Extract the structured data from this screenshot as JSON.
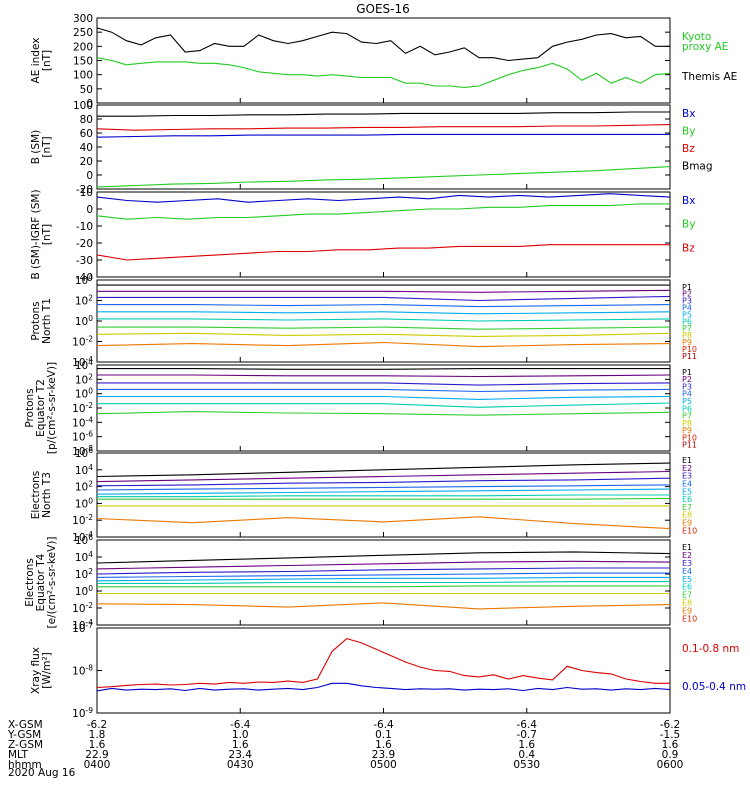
{
  "title": "GOES-16",
  "colors": {
    "black": "#000000",
    "blue": "#0000cc",
    "green": "#22cc22",
    "red": "#dd0000",
    "protons": [
      "#000000",
      "#6a0080",
      "#2a1acc",
      "#1a66ee",
      "#00aaee",
      "#00ccb0",
      "#33cc33",
      "#cccc00",
      "#ee7700",
      "#dd2200",
      "#aa0000"
    ],
    "electrons": [
      "#000000",
      "#6a0080",
      "#2a1acc",
      "#1a66ee",
      "#00aaee",
      "#00ccb0",
      "#33cc33",
      "#cccc00",
      "#ee7700",
      "#dd2200",
      "#aa0000"
    ]
  },
  "chart_data": [
    {
      "id": "ae",
      "type": "line",
      "ylabel": [
        "AE index",
        "[nT]"
      ],
      "yticks": [
        "300",
        "250",
        "200",
        "150",
        "100",
        "50",
        "0"
      ],
      "ylim": [
        0,
        300
      ],
      "legend": [
        {
          "text": "Kyoto",
          "color": "#22cc22"
        },
        {
          "text": "proxy AE",
          "color": "#22cc22"
        },
        {
          "text": "Themis AE",
          "color": "#000000"
        }
      ],
      "series": [
        {
          "name": "Themis AE",
          "color": "#000000",
          "values": [
            265,
            250,
            220,
            205,
            230,
            240,
            180,
            185,
            210,
            200,
            200,
            240,
            220,
            210,
            220,
            235,
            250,
            245,
            215,
            210,
            220,
            175,
            200,
            170,
            180,
            195,
            160,
            160,
            150,
            155,
            160,
            200,
            215,
            225,
            240,
            245,
            230,
            235,
            200,
            200
          ]
        },
        {
          "name": "Kyoto proxy AE",
          "color": "#22cc22",
          "values": [
            160,
            150,
            135,
            140,
            145,
            145,
            145,
            140,
            140,
            135,
            125,
            110,
            105,
            100,
            100,
            95,
            100,
            95,
            90,
            90,
            90,
            70,
            70,
            60,
            60,
            55,
            60,
            80,
            100,
            115,
            125,
            140,
            120,
            80,
            105,
            70,
            90,
            70,
            100,
            105
          ]
        }
      ]
    },
    {
      "id": "bsm",
      "type": "line",
      "ylabel": [
        "B (SM)",
        "[nT]"
      ],
      "yticks": [
        "100",
        "80",
        "60",
        "40",
        "20",
        "0",
        "-20"
      ],
      "ylim": [
        -20,
        100
      ],
      "legend": [
        {
          "text": "Bx",
          "color": "#0000cc"
        },
        {
          "text": "By",
          "color": "#22cc22"
        },
        {
          "text": "Bz",
          "color": "#dd0000"
        },
        {
          "text": "Bmag",
          "color": "#000000"
        }
      ],
      "series": [
        {
          "name": "Bmag",
          "color": "#000000",
          "values": [
            84,
            84,
            85,
            85,
            86,
            86,
            87,
            87,
            88,
            88,
            88,
            88,
            89,
            89,
            90,
            90
          ]
        },
        {
          "name": "Bz",
          "color": "#dd0000",
          "values": [
            66,
            64,
            65,
            66,
            66,
            67,
            67,
            68,
            68,
            69,
            69,
            69,
            70,
            70,
            71,
            72
          ]
        },
        {
          "name": "Bx",
          "color": "#0000cc",
          "values": [
            54,
            55,
            56,
            56,
            57,
            57,
            57,
            57,
            58,
            58,
            58,
            58,
            58,
            58,
            58,
            58
          ]
        },
        {
          "name": "By",
          "color": "#22cc22",
          "values": [
            -17,
            -15,
            -13,
            -12,
            -10,
            -9,
            -7,
            -6,
            -4,
            -2,
            0,
            2,
            4,
            6,
            9,
            12
          ]
        }
      ]
    },
    {
      "id": "bdiff",
      "type": "line",
      "ylabel": [
        "B (SM)-IGRF (SM)",
        "[nT]"
      ],
      "yticks": [
        "10",
        "0",
        "-10",
        "-20",
        "-30",
        "-40"
      ],
      "ylim": [
        -40,
        10
      ],
      "legend": [
        {
          "text": "Bx",
          "color": "#0000cc"
        },
        {
          "text": "By",
          "color": "#22cc22"
        },
        {
          "text": "Bz",
          "color": "#dd0000"
        }
      ],
      "series": [
        {
          "name": "Bx",
          "color": "#0000cc",
          "values": [
            7,
            5,
            4,
            5,
            6,
            4,
            5,
            6,
            5,
            6,
            7,
            6,
            8,
            7,
            8,
            7,
            8,
            9,
            8,
            7
          ]
        },
        {
          "name": "By",
          "color": "#22cc22",
          "values": [
            -4,
            -6,
            -5,
            -6,
            -5,
            -5,
            -4,
            -3,
            -3,
            -2,
            -1,
            0,
            0,
            1,
            1,
            2,
            2,
            2,
            3,
            3
          ]
        },
        {
          "name": "Bz",
          "color": "#dd0000",
          "values": [
            -27,
            -30,
            -29,
            -28,
            -27,
            -26,
            -25,
            -25,
            -24,
            -24,
            -23,
            -23,
            -22,
            -22,
            -22,
            -21,
            -21,
            -21,
            -21,
            -21
          ]
        }
      ]
    },
    {
      "id": "pn",
      "type": "line",
      "ylabel": [
        "Protons",
        "North T1"
      ],
      "yticks": [
        "10^4",
        "10^2",
        "10^0",
        "10^-2",
        "10^-4"
      ],
      "logrange": [
        -4,
        4
      ],
      "legend": [
        "P1",
        "P2",
        "P3",
        "P4",
        "P5",
        "P6",
        "P7",
        "P8",
        "P9",
        "P10",
        "P11"
      ],
      "series": [
        {
          "name": "P1",
          "values": [
            3.5,
            3.5,
            3.5,
            3.5,
            3.5,
            3.5,
            3.5
          ]
        },
        {
          "name": "P2",
          "values": [
            2.9,
            2.9,
            2.9,
            2.9,
            2.8,
            2.9,
            3.0
          ]
        },
        {
          "name": "P3",
          "values": [
            2.3,
            2.3,
            2.3,
            2.3,
            2.0,
            2.2,
            2.4
          ]
        },
        {
          "name": "P4",
          "values": [
            1.6,
            1.6,
            1.5,
            1.6,
            1.4,
            1.5,
            1.6
          ]
        },
        {
          "name": "P5",
          "values": [
            0.9,
            0.9,
            0.8,
            0.9,
            0.7,
            0.8,
            0.9
          ]
        },
        {
          "name": "P6",
          "values": [
            0.2,
            0.2,
            0.1,
            0.2,
            0.0,
            0.1,
            0.2
          ]
        },
        {
          "name": "P7",
          "values": [
            -0.6,
            -0.6,
            -0.7,
            -0.6,
            -0.8,
            -0.7,
            -0.6
          ]
        },
        {
          "name": "P8",
          "values": [
            -1.3,
            -1.2,
            -1.4,
            -1.3,
            -1.5,
            -1.4,
            -1.2
          ]
        },
        {
          "name": "P9",
          "values": [
            -2.4,
            -2.2,
            -2.4,
            -2.1,
            -2.5,
            -2.3,
            -2.2
          ]
        }
      ]
    },
    {
      "id": "pe",
      "type": "line",
      "ylabel": [
        "Protons",
        "Equator T2",
        "[p/(cm²-s-sr-keV)]"
      ],
      "yticks": [
        "10^4",
        "10^2",
        "10^0",
        "10^-2",
        "10^-4",
        "10^-6",
        "10^-8"
      ],
      "logrange": [
        -8,
        4
      ],
      "legend": [
        "P1",
        "P2",
        "P3",
        "P4",
        "P5",
        "P6",
        "P7",
        "P8",
        "P9",
        "P10",
        "P11"
      ],
      "series": [
        {
          "name": "P1",
          "values": [
            3.5,
            3.5,
            3.4,
            3.4,
            3.5,
            3.5,
            3.5
          ]
        },
        {
          "name": "P2",
          "values": [
            2.6,
            2.6,
            2.5,
            2.5,
            2.4,
            2.5,
            2.6
          ]
        },
        {
          "name": "P3",
          "values": [
            1.5,
            1.5,
            1.5,
            1.5,
            1.2,
            1.4,
            1.5
          ]
        },
        {
          "name": "P4",
          "values": [
            0.6,
            0.6,
            0.6,
            0.6,
            0.3,
            0.5,
            0.6
          ]
        },
        {
          "name": "P5",
          "values": [
            -0.4,
            -0.4,
            -0.4,
            -0.4,
            -0.8,
            -0.5,
            -0.4
          ]
        },
        {
          "name": "P6",
          "values": [
            -1.4,
            -1.4,
            -1.4,
            -1.4,
            -1.9,
            -1.6,
            -1.3
          ]
        },
        {
          "name": "P7",
          "values": [
            -2.8,
            -2.5,
            -2.7,
            -2.8,
            -3.0,
            -2.8,
            -2.6
          ]
        }
      ]
    },
    {
      "id": "en",
      "type": "line",
      "ylabel": [
        "Electrons",
        "North T3"
      ],
      "yticks": [
        "10^6",
        "10^4",
        "10^2",
        "10^0",
        "10^-2",
        "10^-4"
      ],
      "logrange": [
        -4,
        6
      ],
      "legend": [
        "E1",
        "E2",
        "E3",
        "E4",
        "E5",
        "E6",
        "E7",
        "E8",
        "E9",
        "E10"
      ],
      "series": [
        {
          "name": "E1",
          "values": [
            3.2,
            3.4,
            3.7,
            4.0,
            4.3,
            4.6,
            4.8
          ]
        },
        {
          "name": "E2",
          "values": [
            2.6,
            2.8,
            3.0,
            3.2,
            3.4,
            3.6,
            3.8
          ]
        },
        {
          "name": "E3",
          "values": [
            2.1,
            2.2,
            2.4,
            2.5,
            2.7,
            2.8,
            3.0
          ]
        },
        {
          "name": "E4",
          "values": [
            1.6,
            1.7,
            1.8,
            1.9,
            2.0,
            2.1,
            2.2
          ]
        },
        {
          "name": "E5",
          "values": [
            1.1,
            1.2,
            1.3,
            1.4,
            1.5,
            1.6,
            1.7
          ]
        },
        {
          "name": "E6",
          "values": [
            0.8,
            0.8,
            0.9,
            0.9,
            0.9,
            1.0,
            1.0
          ]
        },
        {
          "name": "E7",
          "values": [
            0.5,
            0.5,
            0.5,
            0.5,
            0.5,
            0.5,
            0.6
          ]
        },
        {
          "name": "E8",
          "values": [
            -0.3,
            -0.3,
            -0.3,
            -0.3,
            -0.3,
            -0.3,
            -0.3
          ]
        },
        {
          "name": "E9",
          "values": [
            -1.8,
            -2.3,
            -1.7,
            -2.2,
            -1.6,
            -2.4,
            -3.0
          ]
        }
      ]
    },
    {
      "id": "ee",
      "type": "line",
      "ylabel": [
        "Electrons",
        "Equator T4",
        "[e/(cm²-s-sr-keV)]"
      ],
      "yticks": [
        "10^6",
        "10^4",
        "10^2",
        "10^0",
        "10^-2",
        "10^-4"
      ],
      "logrange": [
        -4,
        6
      ],
      "legend": [
        "E1",
        "E2",
        "E3",
        "E4",
        "E5",
        "E6",
        "E7",
        "E8",
        "E9",
        "E10"
      ],
      "series": [
        {
          "name": "E1",
          "values": [
            3.3,
            3.6,
            3.9,
            4.2,
            4.5,
            4.6,
            4.4
          ]
        },
        {
          "name": "E2",
          "values": [
            2.6,
            2.8,
            3.0,
            3.2,
            3.4,
            3.5,
            3.4
          ]
        },
        {
          "name": "E3",
          "values": [
            2.0,
            2.2,
            2.3,
            2.5,
            2.6,
            2.7,
            2.7
          ]
        },
        {
          "name": "E4",
          "values": [
            1.6,
            1.7,
            1.8,
            1.9,
            2.0,
            2.1,
            2.1
          ]
        },
        {
          "name": "E5",
          "values": [
            1.2,
            1.3,
            1.4,
            1.5,
            1.5,
            1.6,
            1.6
          ]
        },
        {
          "name": "E6",
          "values": [
            0.9,
            0.9,
            1.0,
            1.0,
            1.0,
            1.1,
            1.1
          ]
        },
        {
          "name": "E7",
          "values": [
            0.5,
            0.5,
            0.5,
            0.5,
            0.6,
            0.6,
            0.6
          ]
        },
        {
          "name": "E8",
          "values": [
            -0.3,
            -0.3,
            -0.3,
            -0.3,
            -0.3,
            -0.3,
            -0.3
          ]
        },
        {
          "name": "E9",
          "values": [
            -1.5,
            -1.6,
            -1.9,
            -1.4,
            -2.1,
            -1.8,
            -1.6
          ]
        }
      ]
    },
    {
      "id": "xray",
      "type": "line",
      "ylabel": [
        "Xray flux",
        "[W/m²]"
      ],
      "yticks": [
        "10^-7",
        "10^-8",
        "10^-9"
      ],
      "logrange": [
        -9,
        -7
      ],
      "legend": [
        {
          "text": "0.1-0.8 nm",
          "color": "#dd0000"
        },
        {
          "text": "0.05-0.4 nm",
          "color": "#0000cc"
        }
      ],
      "series": [
        {
          "name": "0.1-0.8 nm",
          "color": "#dd0000",
          "values": [
            -8.4,
            -8.38,
            -8.35,
            -8.33,
            -8.32,
            -8.34,
            -8.33,
            -8.3,
            -8.32,
            -8.28,
            -8.3,
            -8.27,
            -8.28,
            -8.25,
            -8.28,
            -8.2,
            -7.55,
            -7.25,
            -7.35,
            -7.5,
            -7.65,
            -7.8,
            -7.92,
            -8.0,
            -8.02,
            -8.12,
            -8.15,
            -8.1,
            -8.2,
            -8.12,
            -8.18,
            -8.22,
            -7.9,
            -8.0,
            -8.05,
            -8.08,
            -8.2,
            -8.26,
            -8.3,
            -8.3
          ]
        },
        {
          "name": "0.05-0.4 nm",
          "color": "#0000cc",
          "values": [
            -8.48,
            -8.42,
            -8.46,
            -8.44,
            -8.45,
            -8.43,
            -8.47,
            -8.42,
            -8.46,
            -8.44,
            -8.43,
            -8.46,
            -8.44,
            -8.42,
            -8.45,
            -8.4,
            -8.3,
            -8.3,
            -8.36,
            -8.4,
            -8.42,
            -8.45,
            -8.43,
            -8.44,
            -8.43,
            -8.46,
            -8.44,
            -8.45,
            -8.43,
            -8.47,
            -8.42,
            -8.45,
            -8.4,
            -8.44,
            -8.43,
            -8.46,
            -8.43,
            -8.45,
            -8.42,
            -8.45
          ]
        }
      ]
    }
  ],
  "footer": {
    "rows": [
      {
        "label": "X-GSM",
        "values": [
          "-6.2",
          "-6.4",
          "-6.4",
          "-6.4",
          "-6.2"
        ]
      },
      {
        "label": "Y-GSM",
        "values": [
          "1.8",
          "1.0",
          "0.1",
          "-0.7",
          "-1.5"
        ]
      },
      {
        "label": "Z-GSM",
        "values": [
          "1.6",
          "1.6",
          "1.6",
          "1.6",
          "1.6"
        ]
      },
      {
        "label": "MLT",
        "values": [
          "22.9",
          "23.4",
          "23.9",
          "0.4",
          "0.9"
        ]
      },
      {
        "label": "hhmm",
        "values": [
          "0400",
          "0430",
          "0500",
          "0530",
          "0600"
        ]
      }
    ],
    "date": "2020 Aug 16"
  }
}
